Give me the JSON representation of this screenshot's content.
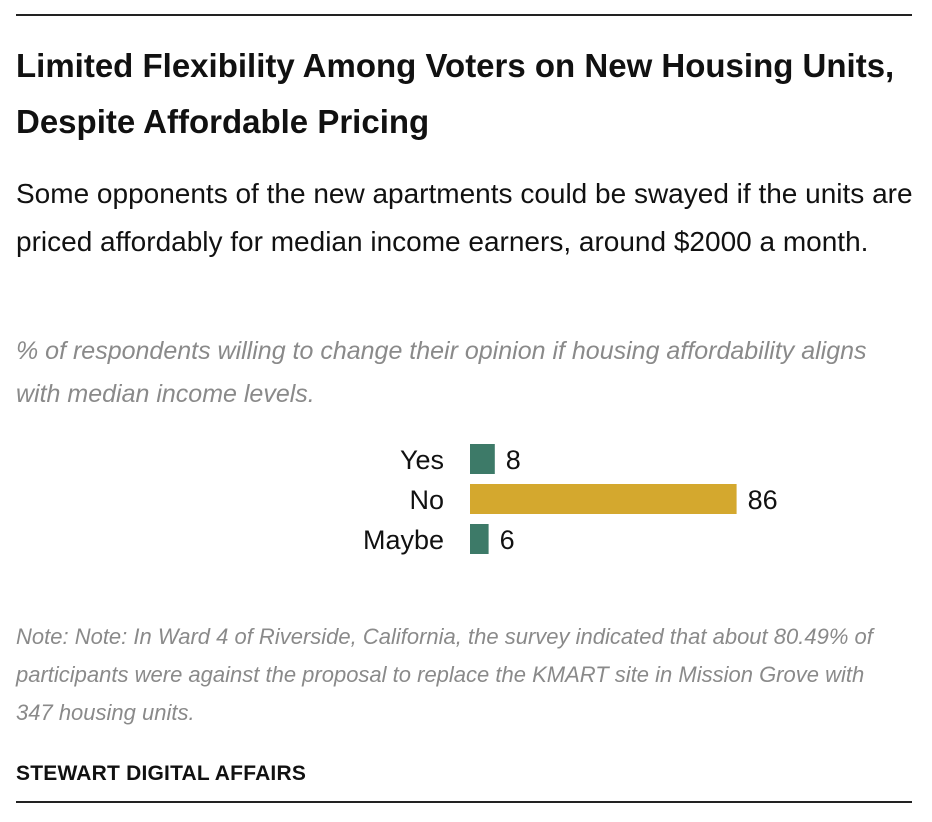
{
  "title": "Limited Flexibility Among Voters on New Housing Units, Despite Affordable Pricing",
  "subtitle": "Some opponents of the new apartments could be swayed if the units are priced affordably for median income earners, around $2000 a month.",
  "question": "% of respondents willing to change their opinion if housing affordability aligns with median income levels.",
  "note": "Note: Note: In Ward 4 of Riverside, California, the survey indicated that about 80.49% of participants were against the proposal to replace the KMART site in Mission Grove with 347 housing units.",
  "source": "STEWART DIGITAL AFFAIRS",
  "colors": {
    "yes": "#3d7a68",
    "no": "#d4a82e",
    "maybe": "#3d7a68"
  },
  "chart_data": {
    "type": "bar",
    "orientation": "horizontal",
    "categories": [
      "Yes",
      "No",
      "Maybe"
    ],
    "values": [
      8,
      86,
      6
    ],
    "data_labels": [
      "8",
      "86",
      "6"
    ],
    "xlim": [
      0,
      100
    ],
    "title": "",
    "xlabel": "",
    "ylabel": ""
  }
}
